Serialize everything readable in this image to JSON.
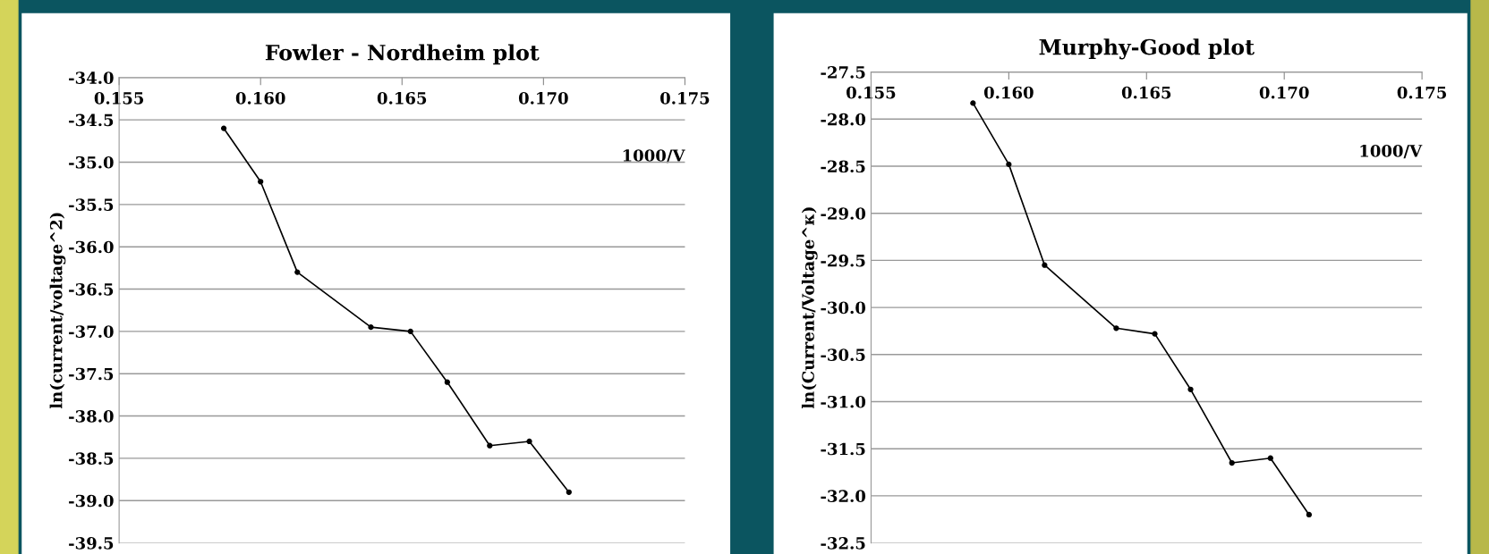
{
  "chart_data": [
    {
      "type": "line",
      "title": "Fowler - Nordheim plot",
      "xlabel": "1000/V",
      "ylabel": "ln(current/voltage^2)",
      "x": [
        0.1587,
        0.16,
        0.1613,
        0.1639,
        0.1653,
        0.1666,
        0.1681,
        0.1695,
        0.1709
      ],
      "series": [
        {
          "color": "#000000",
          "values": [
            -34.6,
            -35.23,
            -36.3,
            -36.95,
            -37.0,
            -37.6,
            -38.35,
            -38.3,
            -38.9
          ]
        }
      ],
      "xlim": [
        0.155,
        0.175
      ],
      "xticks": [
        {
          "value": 0.155,
          "label": "0.155"
        },
        {
          "value": 0.16,
          "label": "0.160"
        },
        {
          "value": 0.165,
          "label": "0.165"
        },
        {
          "value": 0.17,
          "label": "0.170"
        },
        {
          "value": 0.175,
          "label": "0.175"
        }
      ],
      "ylim": [
        -39.5,
        -34.0
      ],
      "yticks": [
        {
          "value": -39.5,
          "label": "-39.5"
        },
        {
          "value": -39.0,
          "label": "-39.0"
        },
        {
          "value": -38.5,
          "label": "-38.5"
        },
        {
          "value": -38.0,
          "label": "-38.0"
        },
        {
          "value": -37.5,
          "label": "-37.5"
        },
        {
          "value": -37.0,
          "label": "-37.0"
        },
        {
          "value": -36.5,
          "label": "-36.5"
        },
        {
          "value": -36.0,
          "label": "-36.0"
        },
        {
          "value": -35.5,
          "label": "-35.5"
        },
        {
          "value": -35.0,
          "label": "-35.0"
        },
        {
          "value": -34.5,
          "label": "-34.5"
        },
        {
          "value": -34.0,
          "label": "-34.0"
        }
      ],
      "grid": "y",
      "marker": "circle",
      "line_style": "solid"
    },
    {
      "type": "line",
      "title": "Murphy-Good plot",
      "xlabel": "1000/V",
      "ylabel": "ln(Current/Voltage^κ)",
      "x": [
        0.1587,
        0.16,
        0.1613,
        0.1639,
        0.1653,
        0.1666,
        0.1681,
        0.1695,
        0.1709
      ],
      "series": [
        {
          "color": "#000000",
          "values": [
            -27.83,
            -28.48,
            -29.55,
            -30.22,
            -30.28,
            -30.87,
            -31.65,
            -31.6,
            -32.2
          ]
        }
      ],
      "xlim": [
        0.155,
        0.175
      ],
      "xticks": [
        {
          "value": 0.155,
          "label": "0.155"
        },
        {
          "value": 0.16,
          "label": "0.160"
        },
        {
          "value": 0.165,
          "label": "0.165"
        },
        {
          "value": 0.17,
          "label": "0.170"
        },
        {
          "value": 0.175,
          "label": "0.175"
        }
      ],
      "ylim": [
        -32.5,
        -27.5
      ],
      "yticks": [
        {
          "value": -32.5,
          "label": "-32.5"
        },
        {
          "value": -32.0,
          "label": "-32.0"
        },
        {
          "value": -31.5,
          "label": "-31.5"
        },
        {
          "value": -31.0,
          "label": "-31.0"
        },
        {
          "value": -30.5,
          "label": "-30.5"
        },
        {
          "value": -30.0,
          "label": "-30.0"
        },
        {
          "value": -29.5,
          "label": "-29.5"
        },
        {
          "value": -29.0,
          "label": "-29.0"
        },
        {
          "value": -28.5,
          "label": "-28.5"
        },
        {
          "value": -28.0,
          "label": "-28.0"
        },
        {
          "value": -27.5,
          "label": "-27.5"
        }
      ],
      "grid": "y",
      "marker": "circle",
      "line_style": "solid"
    }
  ]
}
